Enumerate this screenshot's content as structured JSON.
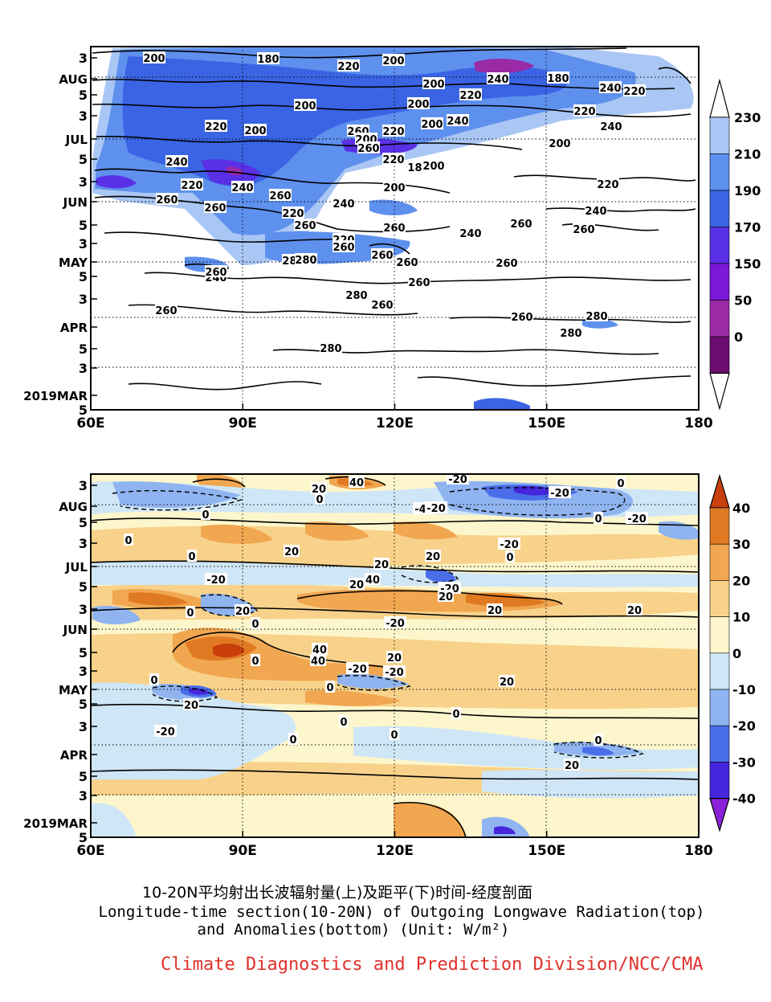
{
  "chart_data": [
    {
      "type": "heatmap",
      "title": "",
      "xlabel": "",
      "ylabel": "",
      "x_ticks": [
        "60E",
        "90E",
        "120E",
        "150E",
        "180"
      ],
      "y_ticks": [
        "5",
        "2019MAR",
        "3",
        "5",
        "APR",
        "3",
        "5",
        "MAY",
        "3",
        "5",
        "JUN",
        "3",
        "5",
        "JUL",
        "3",
        "5",
        "AUG",
        "3"
      ],
      "xlim": [
        60,
        180
      ],
      "colorbar": {
        "labels": [
          "0",
          "50",
          "150",
          "170",
          "190",
          "210",
          "230"
        ],
        "colors": [
          "#6b0c6e",
          "#9a2aa6",
          "#7b18d8",
          "#5a30e6",
          "#3a64e4",
          "#5e90ee",
          "#a9c6f4"
        ]
      },
      "contour_labels": [
        "200",
        "180",
        "220",
        "200",
        "240",
        "180",
        "200",
        "220",
        "200",
        "240",
        "220",
        "200",
        "220",
        "200",
        "200",
        "240",
        "220",
        "260",
        "220",
        "200",
        "240",
        "200",
        "260",
        "220",
        "240",
        "180",
        "200",
        "220",
        "240",
        "260",
        "260",
        "200",
        "240",
        "220",
        "260",
        "220",
        "240",
        "260",
        "260",
        "260",
        "260",
        "240",
        "220",
        "260",
        "260",
        "260",
        "280",
        "280",
        "260",
        "260",
        "240",
        "260",
        "280",
        "260",
        "260",
        "260",
        "280",
        "280",
        "280"
      ]
    },
    {
      "type": "heatmap",
      "title": "",
      "xlabel": "",
      "ylabel": "",
      "x_ticks": [
        "60E",
        "90E",
        "120E",
        "150E",
        "180"
      ],
      "y_ticks": [
        "5",
        "2019MAR",
        "3",
        "5",
        "APR",
        "3",
        "5",
        "MAY",
        "3",
        "5",
        "JUN",
        "3",
        "5",
        "JUL",
        "3",
        "5",
        "AUG",
        "3"
      ],
      "xlim": [
        60,
        180
      ],
      "colorbar": {
        "labels": [
          "40",
          "30",
          "20",
          "10",
          "0",
          "-10",
          "-20",
          "-30",
          "-40"
        ],
        "colors": [
          "#c9400d",
          "#e07a22",
          "#f1a650",
          "#f8d28a",
          "#fdf6cc",
          "#cfe6f6",
          "#90b4f0",
          "#4a6ee8",
          "#4526dc",
          "#8a20d8"
        ]
      },
      "contour_labels": [
        "40",
        "20",
        "-20",
        "0",
        "0",
        "-20",
        "-40",
        "0",
        "-20",
        "0",
        "-20",
        "0",
        "20",
        "-20",
        "20",
        "0",
        "0",
        "20",
        "-20",
        "20",
        "40",
        "-20",
        "20",
        "0",
        "20",
        "-20",
        "20",
        "20",
        "0",
        "40",
        "0",
        "40",
        "-20",
        "20",
        "-20",
        "0",
        "20",
        "0",
        "20",
        "0",
        "0",
        "-20",
        "0",
        "0",
        "0",
        "20"
      ]
    }
  ],
  "captions": {
    "chinese": "10-20N平均射出长波辐射量(上)及距平(下)时间-经度剖面",
    "english_line1": "Longitude-time section(10-20N) of Outgoing Longwave Radiation(top)",
    "english_line2": "and Anomalies(bottom) (Unit: W/m²)",
    "credit": "Climate Diagnostics and Prediction Division/NCC/CMA"
  },
  "style": {
    "credit_color": "#e0302a"
  }
}
